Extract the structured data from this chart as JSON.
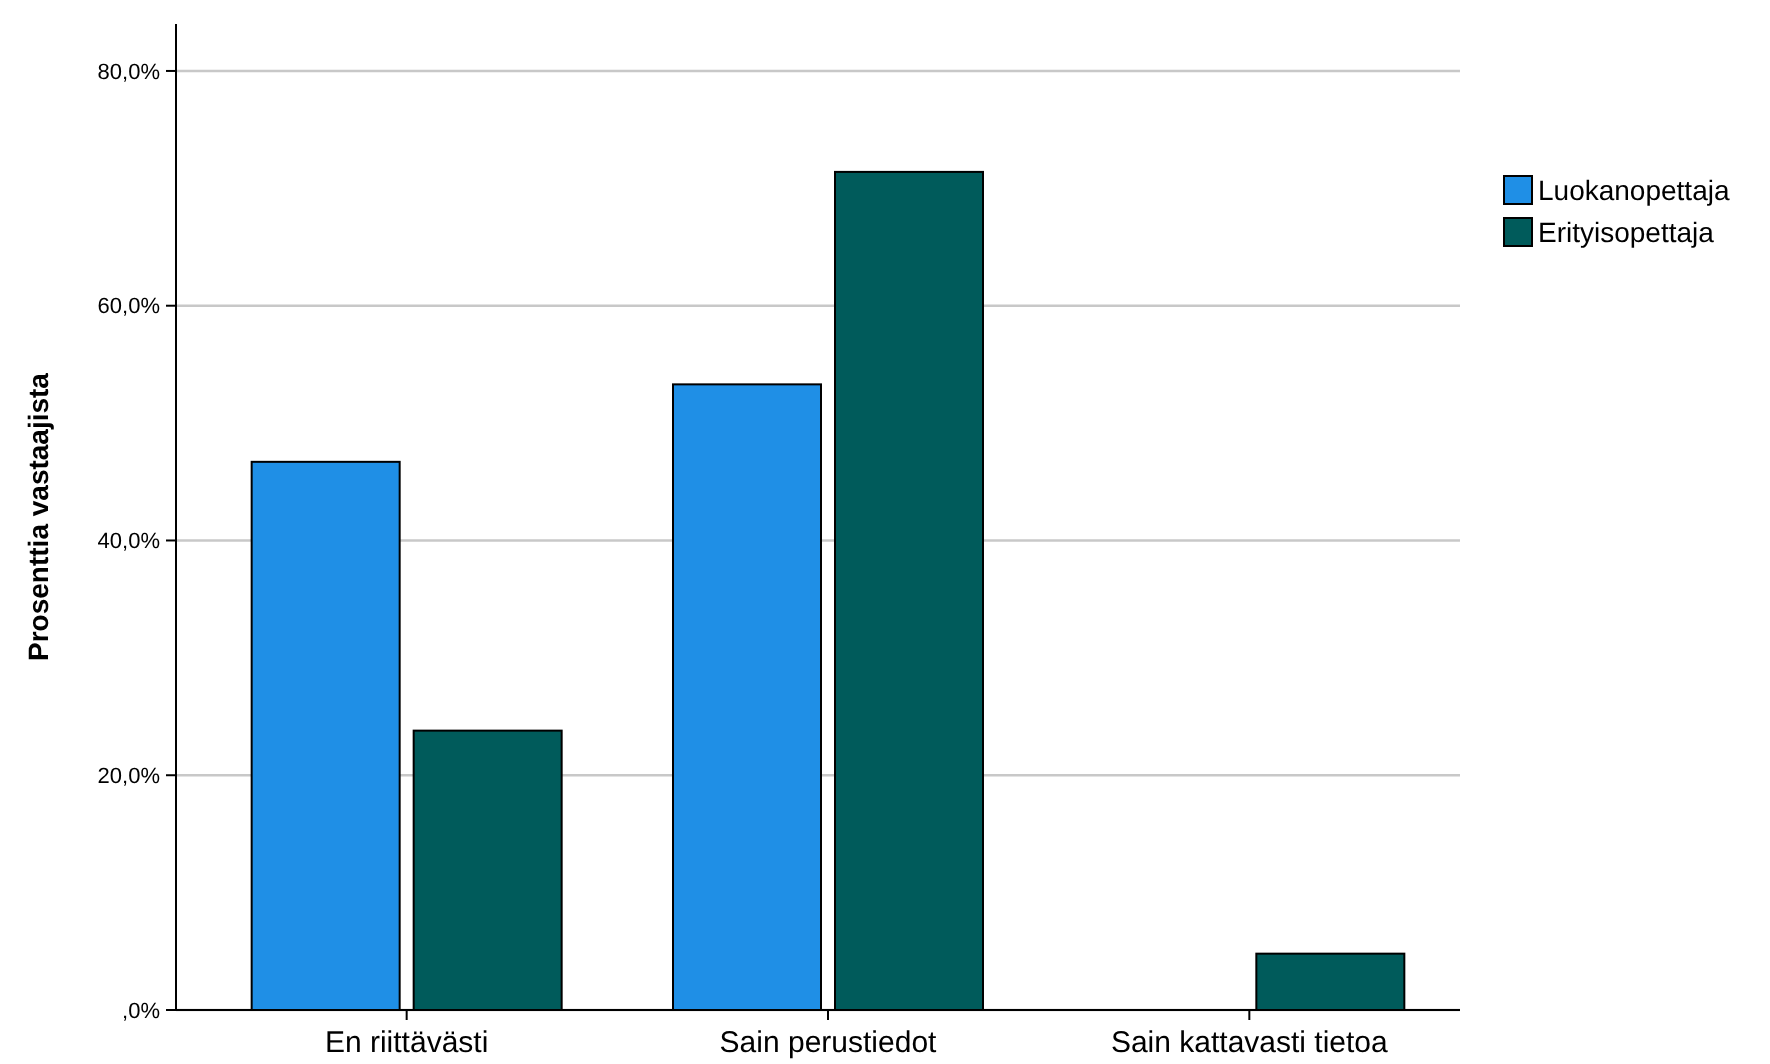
{
  "chart_data": {
    "type": "bar",
    "ylabel": "Prosenttia vastaajista",
    "categories": [
      "En riittävästi",
      "Sain perustiedot",
      "Sain kattavasti tietoa"
    ],
    "series": [
      {
        "name": "Luokanopettaja",
        "color": "#1f8fe6",
        "values": [
          46.7,
          53.3,
          0
        ]
      },
      {
        "name": "Erityisopettaja",
        "color": "#005b5b",
        "values": [
          23.8,
          71.4,
          4.8
        ]
      }
    ],
    "ylim": [
      0,
      84
    ],
    "yticks": [
      {
        "value": 0,
        "label": ",0%"
      },
      {
        "value": 20,
        "label": "20,0%"
      },
      {
        "value": 40,
        "label": "40,0%"
      },
      {
        "value": 60,
        "label": "60,0%"
      },
      {
        "value": 80,
        "label": "80,0%"
      }
    ],
    "grid": "y",
    "legend": "right"
  }
}
